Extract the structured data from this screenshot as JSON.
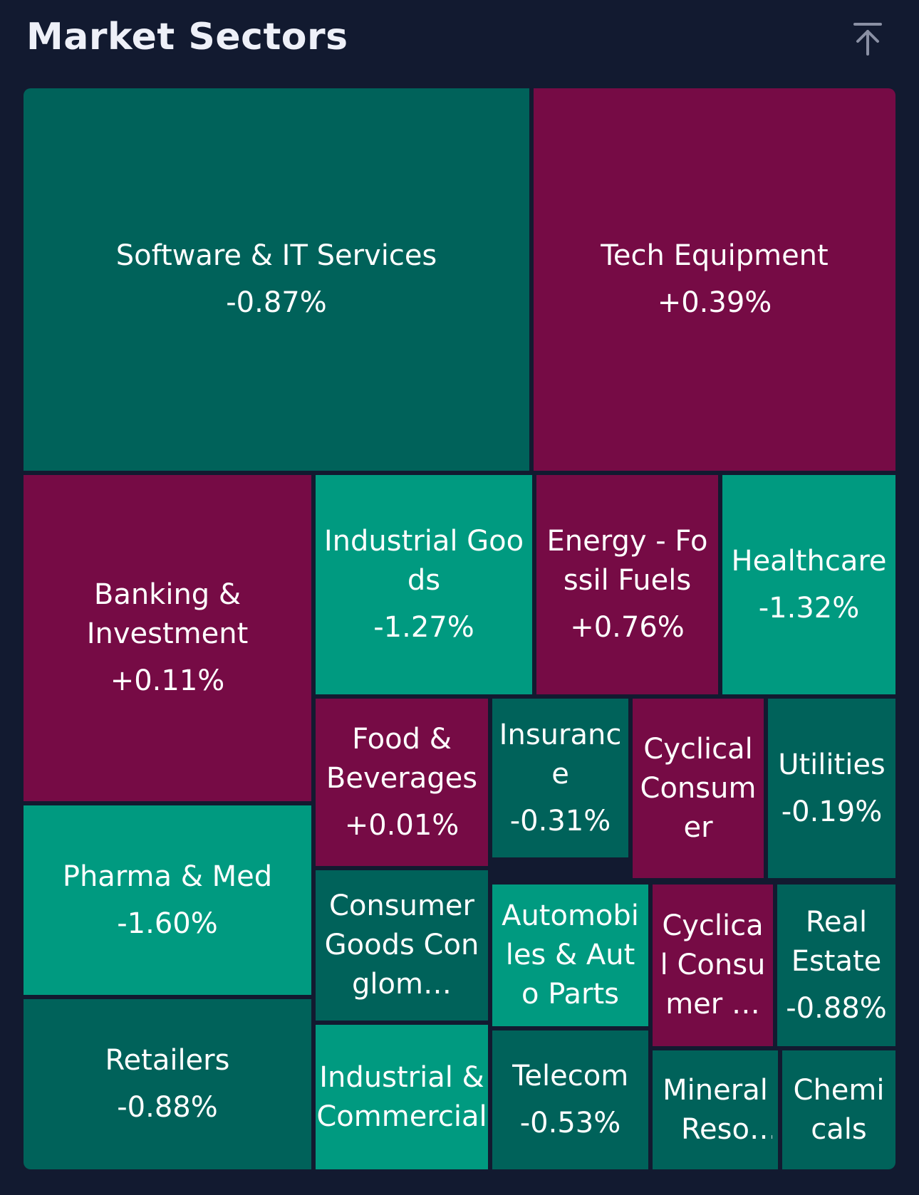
{
  "header": {
    "title": "Market Sectors",
    "scroll_top_icon": "arrow-up-to-line-icon"
  },
  "colors": {
    "background": "#121a30",
    "positive": "#760b45",
    "negative_strong": "#009a80",
    "negative_mild": "#00625a",
    "title_text": "#eef0f8",
    "icon": "#8a90a4"
  },
  "chart_data": {
    "type": "treemap",
    "title": "Market Sectors",
    "unit": "%",
    "sectors": [
      {
        "name": "Software & IT Services",
        "value": "-0.87%",
        "change": -0.87
      },
      {
        "name": "Tech Equipment",
        "value": "+0.39%",
        "change": 0.39
      },
      {
        "name": "Banking & Investment",
        "value": "+0.11%",
        "change": 0.11
      },
      {
        "name": "Industrial Goods",
        "value": "-1.27%",
        "change": -1.27
      },
      {
        "name": "Energy - Fossil Fuels",
        "value": "+0.76%",
        "change": 0.76
      },
      {
        "name": "Healthcare",
        "value": "-1.32%",
        "change": -1.32
      },
      {
        "name": "Pharma & Med",
        "value": "-1.60%",
        "change": -1.6
      },
      {
        "name": "Food & Beverages",
        "value": "+0.01%",
        "change": 0.01
      },
      {
        "name": "Insurance",
        "value": "-0.31%",
        "change": -0.31
      },
      {
        "name": "Cyclical Consumer",
        "value": "",
        "change": null
      },
      {
        "name": "Utilities",
        "value": "-0.19%",
        "change": -0.19
      },
      {
        "name": "Retailers",
        "value": "-0.88%",
        "change": -0.88
      },
      {
        "name": "Consumer Goods Conglom…",
        "value": "",
        "change": null
      },
      {
        "name": "Automobiles & Auto Parts",
        "value": "",
        "change": null
      },
      {
        "name": "Cyclical Consumer Pro…",
        "value": "",
        "change": null
      },
      {
        "name": "Real Estate",
        "value": "-0.88%",
        "change": -0.88
      },
      {
        "name": "Industrial & Commercial",
        "value": "",
        "change": null
      },
      {
        "name": "Telecom",
        "value": "-0.53%",
        "change": -0.53
      },
      {
        "name": "Mineral Resou…",
        "value": "",
        "change": null
      },
      {
        "name": "Chemicals",
        "value": "",
        "change": null
      }
    ]
  }
}
